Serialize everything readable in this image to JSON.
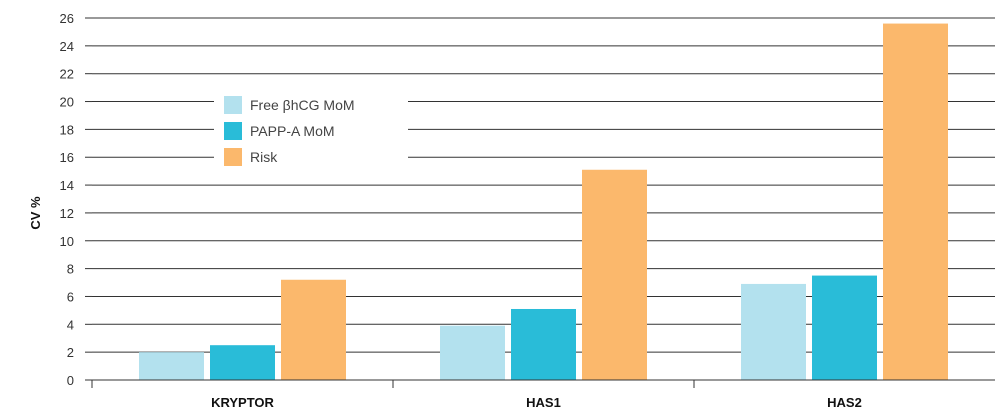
{
  "chart_data": {
    "type": "bar",
    "categories": [
      "KRYPTOR",
      "HAS1",
      "HAS2"
    ],
    "series": [
      {
        "name": "Free βhCG MoM",
        "values": [
          2.0,
          3.9,
          6.9
        ],
        "color": "#b3e1ee"
      },
      {
        "name": "PAPP-A MoM",
        "values": [
          2.5,
          5.1,
          7.5
        ],
        "color": "#29bcd8"
      },
      {
        "name": "Risk",
        "values": [
          7.2,
          15.1,
          25.6
        ],
        "color": "#fbb86c"
      }
    ],
    "ylabel": "CV %",
    "xlabel": "",
    "ylim": [
      0,
      26
    ],
    "yticks": [
      0,
      2,
      4,
      6,
      8,
      10,
      12,
      14,
      16,
      18,
      20,
      22,
      24,
      26
    ],
    "grid": true,
    "legend": "upper-left"
  }
}
